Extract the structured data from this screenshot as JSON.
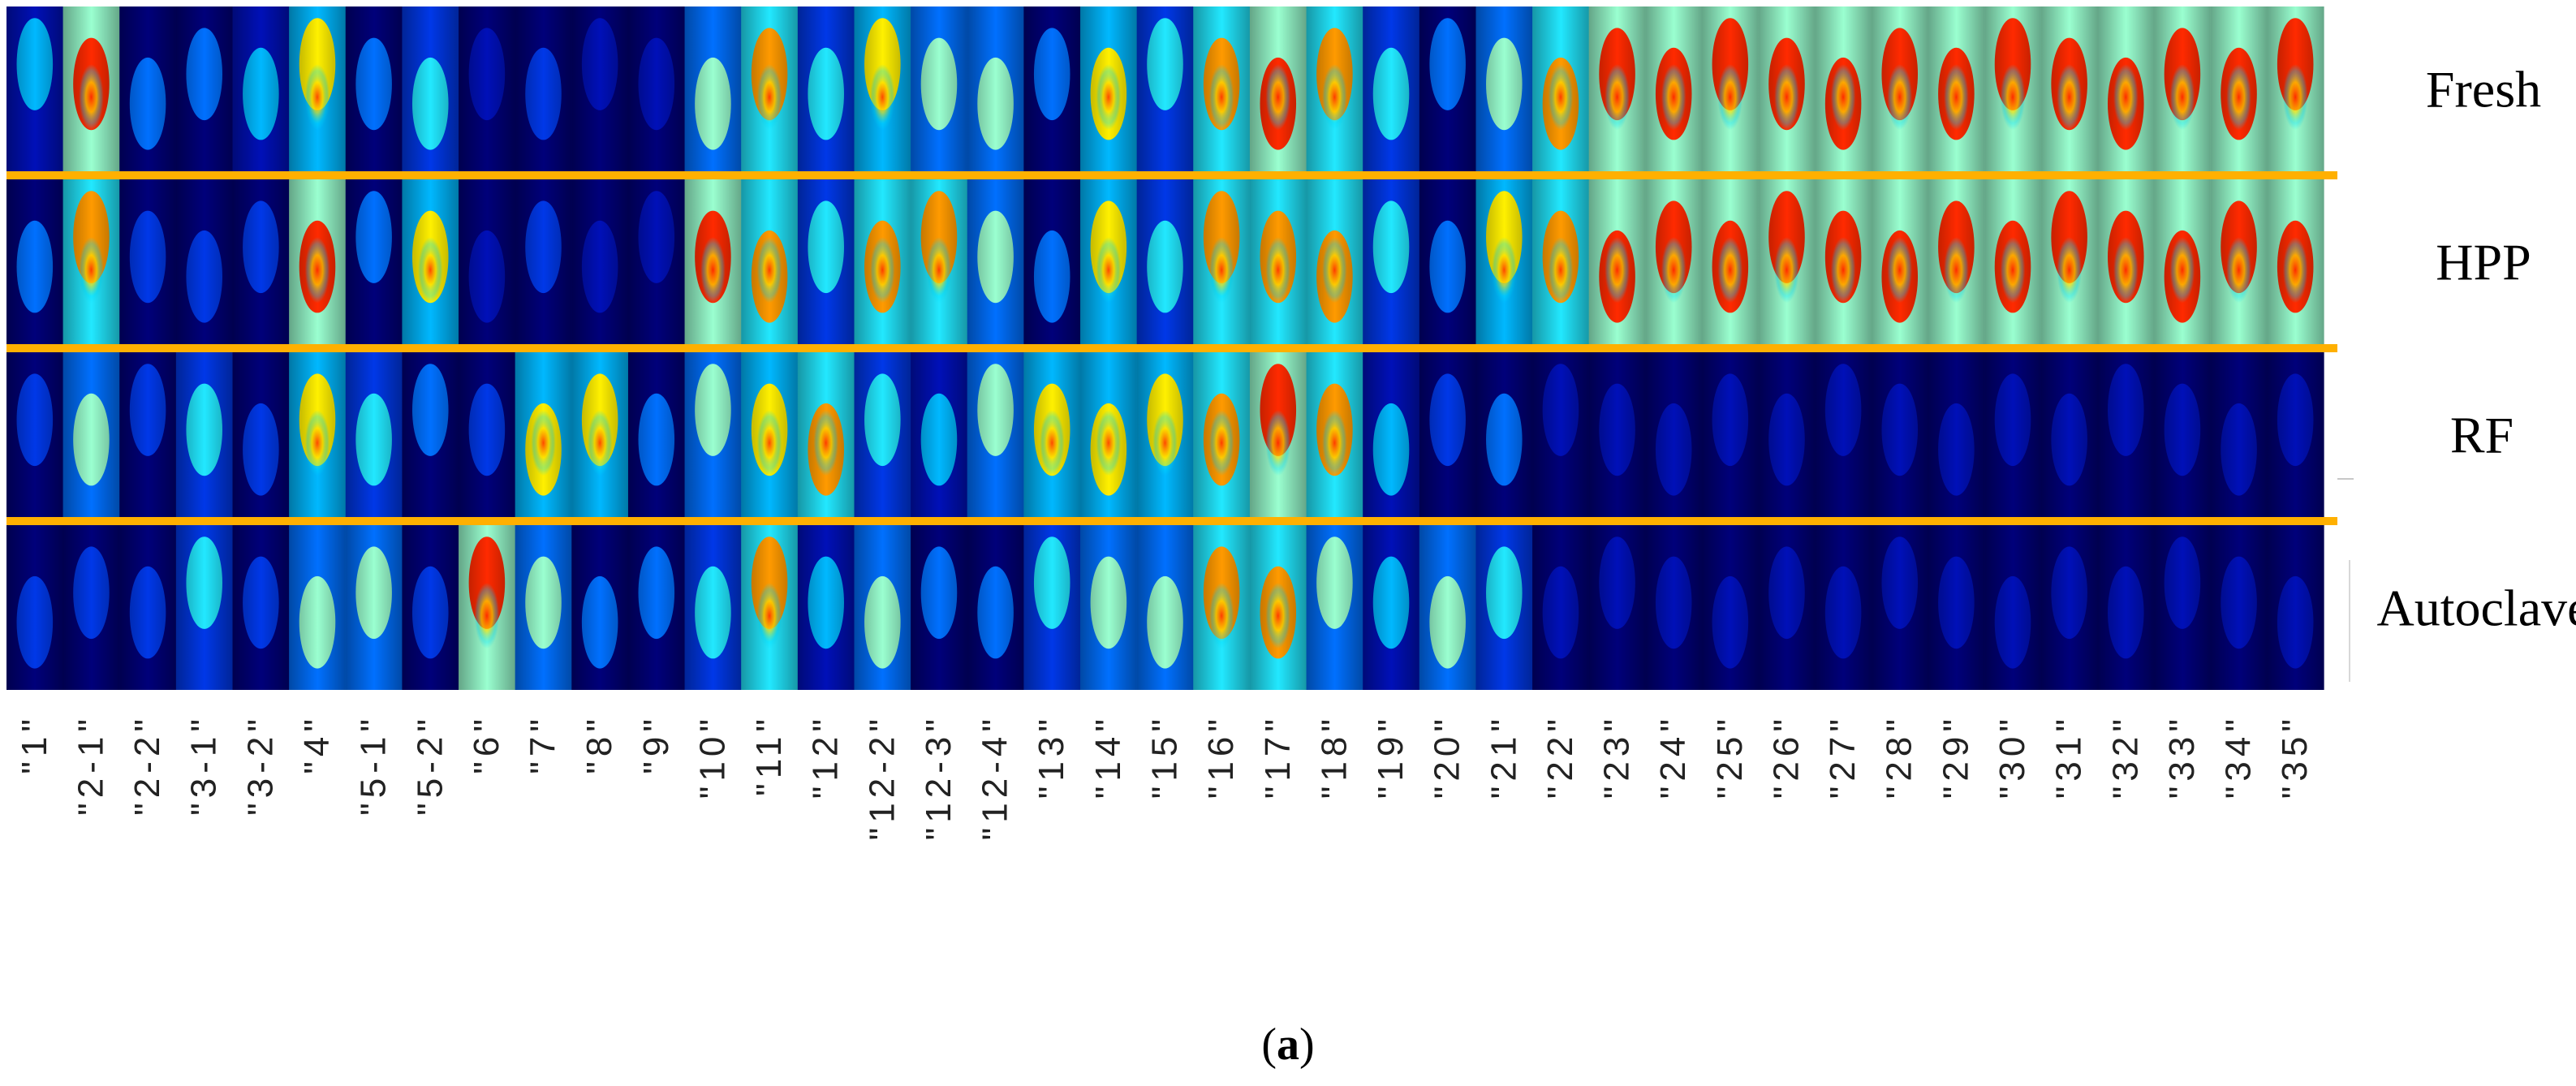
{
  "row_labels": [
    "Fresh",
    "HPP",
    "RF",
    "Autoclave"
  ],
  "column_labels": [
    "\"1\"",
    "\"2-1\"",
    "\"2-2\"",
    "\"3-1\"",
    "\"3-2\"",
    "\"4\"",
    "\"5-1\"",
    "\"5-2\"",
    "\"6\"",
    "\"7\"",
    "\"8\"",
    "\"9\"",
    "\"10\"",
    "\"11\"",
    "\"12\"",
    "\"12-2\"",
    "\"12-3\"",
    "\"12-4\"",
    "\"13\"",
    "\"14\"",
    "\"15\"",
    "\"16\"",
    "\"17\"",
    "\"18\"",
    "\"19\"",
    "\"20\"",
    "\"21\"",
    "\"22\"",
    "\"23\"",
    "\"24\"",
    "\"25\"",
    "\"26\"",
    "\"27\"",
    "\"28\"",
    "\"29\"",
    "\"30\"",
    "\"31\"",
    "\"32\"",
    "\"33\"",
    "\"34\"",
    "\"35\""
  ],
  "caption": {
    "open": "(",
    "letter": "a",
    "close": ")"
  },
  "colors": {
    "separator": "#ffb000",
    "background": "#00008f"
  },
  "intensity_levels": [
    [
      4,
      9,
      3,
      3,
      4,
      7,
      3,
      5,
      1,
      2,
      1,
      1,
      6,
      8,
      5,
      7,
      6,
      6,
      3,
      7,
      5,
      8,
      9,
      8,
      5,
      3,
      6,
      8,
      9,
      9,
      9,
      9,
      9,
      9,
      9,
      9,
      9,
      9,
      9,
      9,
      9
    ],
    [
      3,
      8,
      2,
      2,
      2,
      9,
      3,
      7,
      1,
      2,
      1,
      1,
      9,
      8,
      5,
      8,
      8,
      6,
      3,
      7,
      5,
      8,
      8,
      8,
      5,
      3,
      7,
      8,
      9,
      9,
      9,
      9,
      9,
      9,
      9,
      9,
      9,
      9,
      9,
      9,
      9
    ],
    [
      2,
      6,
      2,
      5,
      2,
      7,
      5,
      3,
      2,
      7,
      7,
      3,
      6,
      7,
      8,
      5,
      4,
      6,
      7,
      7,
      7,
      8,
      9,
      8,
      4,
      2,
      3,
      1,
      1,
      1,
      1,
      1,
      1,
      1,
      1,
      1,
      1,
      1,
      1,
      1,
      1
    ],
    [
      2,
      2,
      2,
      5,
      2,
      6,
      6,
      2,
      9,
      6,
      3,
      3,
      5,
      8,
      4,
      6,
      3,
      3,
      5,
      6,
      6,
      8,
      8,
      6,
      4,
      6,
      5,
      1,
      1,
      1,
      1,
      1,
      1,
      1,
      1,
      1,
      1,
      1,
      1,
      1,
      1
    ]
  ]
}
